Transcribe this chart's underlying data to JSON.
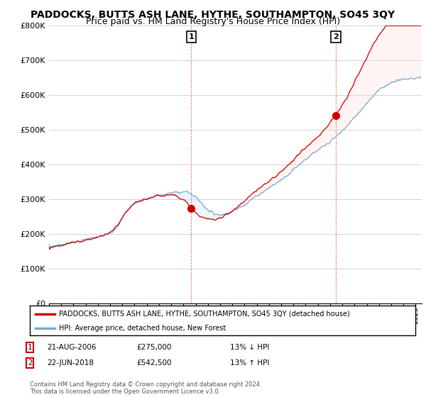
{
  "title": "PADDOCKS, BUTTS ASH LANE, HYTHE, SOUTHAMPTON, SO45 3QY",
  "subtitle": "Price paid vs. HM Land Registry's House Price Index (HPI)",
  "ylabel_ticks": [
    "£0",
    "£100K",
    "£200K",
    "£300K",
    "£400K",
    "£500K",
    "£600K",
    "£700K",
    "£800K"
  ],
  "ytick_values": [
    0,
    100000,
    200000,
    300000,
    400000,
    500000,
    600000,
    700000,
    800000
  ],
  "ylim": [
    0,
    800000
  ],
  "xlim_start": 1995.0,
  "xlim_end": 2025.5,
  "transaction1": {
    "date": 2006.64,
    "price": 275000,
    "label": "1",
    "pct": "13% ↓ HPI",
    "date_str": "21-AUG-2006"
  },
  "transaction2": {
    "date": 2018.47,
    "price": 542500,
    "label": "2",
    "pct": "13% ↑ HPI",
    "date_str": "22-JUN-2018"
  },
  "legend_label1": "PADDOCKS, BUTTS ASH LANE, HYTHE, SOUTHAMPTON, SO45 3QY (detached house)",
  "legend_label2": "HPI: Average price, detached house, New Forest",
  "line_color_red": "#cc0000",
  "line_color_blue": "#7aadcc",
  "fill_color_blue": "#ddeeff",
  "dashed_color": "#dd4444",
  "footnote": "Contains HM Land Registry data © Crown copyright and database right 2024.\nThis data is licensed under the Open Government Licence v3.0.",
  "background_color": "#ffffff",
  "grid_color": "#cccccc",
  "title_fontsize": 10,
  "subtitle_fontsize": 9,
  "tick_fontsize": 8
}
